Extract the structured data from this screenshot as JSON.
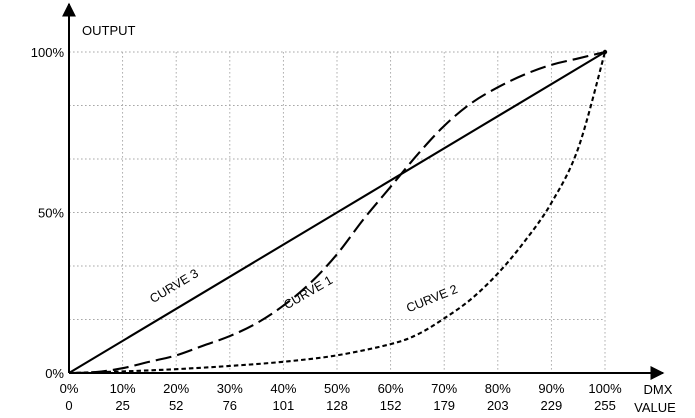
{
  "chart_data": {
    "type": "line",
    "ylabel": "OUTPUT",
    "xlabel": [
      "DMX",
      "VALUE"
    ],
    "xlim": [
      0,
      100
    ],
    "ylim": [
      0,
      100
    ],
    "grid": true,
    "x_ticks": [
      {
        "pct": 0,
        "pct_label": "0%",
        "dmx_label": "0"
      },
      {
        "pct": 10,
        "pct_label": "10%",
        "dmx_label": "25"
      },
      {
        "pct": 20,
        "pct_label": "20%",
        "dmx_label": "52"
      },
      {
        "pct": 30,
        "pct_label": "30%",
        "dmx_label": "76"
      },
      {
        "pct": 40,
        "pct_label": "40%",
        "dmx_label": "101"
      },
      {
        "pct": 50,
        "pct_label": "50%",
        "dmx_label": "128"
      },
      {
        "pct": 60,
        "pct_label": "60%",
        "dmx_label": "152"
      },
      {
        "pct": 70,
        "pct_label": "70%",
        "dmx_label": "179"
      },
      {
        "pct": 80,
        "pct_label": "80%",
        "dmx_label": "203"
      },
      {
        "pct": 90,
        "pct_label": "90%",
        "dmx_label": "229"
      },
      {
        "pct": 100,
        "pct_label": "100%",
        "dmx_label": "255"
      }
    ],
    "y_ticks": [
      {
        "value": 0,
        "label": "0%"
      },
      {
        "value": 50,
        "label": "50%"
      },
      {
        "value": 100,
        "label": "100%"
      }
    ],
    "series": [
      {
        "name": "CURVE 1",
        "style": "long-dash",
        "x": [
          0,
          5,
          10,
          15,
          20,
          25,
          30,
          35,
          40,
          45,
          50,
          55,
          60,
          65,
          70,
          75,
          80,
          85,
          90,
          95,
          100
        ],
        "y": [
          0,
          0.3,
          1.5,
          3.5,
          5.5,
          8.5,
          11.5,
          15.5,
          21,
          28,
          37,
          48,
          58,
          68,
          77,
          84,
          89,
          93,
          96,
          98,
          100
        ],
        "label_at": [
          45,
          24
        ]
      },
      {
        "name": "CURVE 2",
        "style": "short-dash",
        "x": [
          0,
          10,
          20,
          30,
          40,
          50,
          60,
          65,
          70,
          75,
          80,
          85,
          90,
          95,
          100
        ],
        "y": [
          0,
          0.5,
          1.2,
          2.2,
          3.5,
          5.5,
          9,
          12,
          17,
          23,
          31,
          41,
          53,
          70,
          100
        ],
        "label_at": [
          68,
          22
        ]
      },
      {
        "name": "CURVE 3",
        "style": "solid",
        "x": [
          0,
          50,
          61,
          100
        ],
        "y": [
          0,
          50,
          61,
          100
        ],
        "label_at": [
          20,
          26
        ]
      }
    ]
  }
}
